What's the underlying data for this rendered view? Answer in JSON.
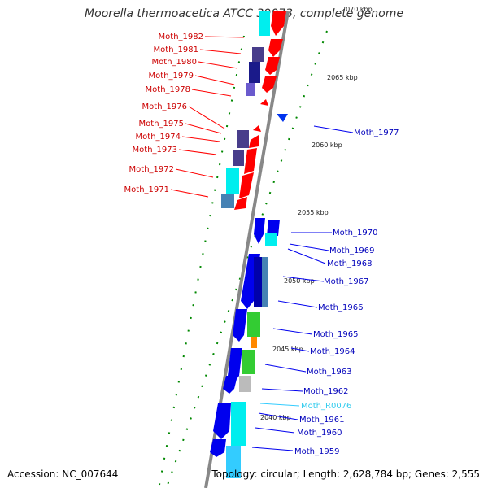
{
  "title": "Moorella thermoacetica ATCC 39073, complete genome",
  "accession": "Accession: NC_007644",
  "summary": "Topology: circular; Length: 2,628,784 bp; Genes: 2,555",
  "colors": {
    "forward_gene": "#ff0000",
    "reverse_gene": "#0000ee",
    "rna_gene": "#33ccff",
    "backbone": "#888888",
    "tick": "#008800"
  },
  "ticks": [
    "2070 kbp",
    "2065 kbp",
    "2060 kbp",
    "2055 kbp",
    "2050 kbp",
    "2045 kbp",
    "2040 kbp"
  ],
  "genes_left": [
    "Moth_1982",
    "Moth_1981",
    "Moth_1980",
    "Moth_1979",
    "Moth_1978",
    "Moth_1976",
    "Moth_1975",
    "Moth_1974",
    "Moth_1973",
    "Moth_1972",
    "Moth_1971"
  ],
  "genes_right": [
    "Moth_1977",
    "Moth_1970",
    "Moth_1969",
    "Moth_1968",
    "Moth_1967",
    "Moth_1966",
    "Moth_1965",
    "Moth_1964",
    "Moth_1963",
    "Moth_1962",
    "Moth_R0076",
    "Moth_1961",
    "Moth_1960",
    "Moth_1959"
  ]
}
